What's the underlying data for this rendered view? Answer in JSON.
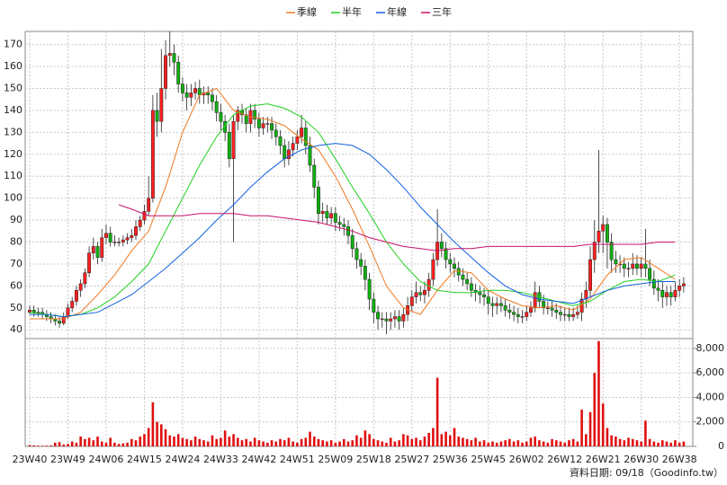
{
  "chart_data": {
    "type": "candlestick",
    "grid": true,
    "legend": "top",
    "up_color": "#ff2020",
    "down_color": "#10b010",
    "source": "資料日期: 09/18（Goodinfo.tw）",
    "categories": [
      "23W40",
      null,
      null,
      null,
      null,
      null,
      null,
      null,
      null,
      "23W49",
      null,
      null,
      null,
      null,
      null,
      null,
      null,
      null,
      "24W06",
      null,
      null,
      null,
      null,
      null,
      null,
      null,
      null,
      "24W15",
      null,
      null,
      null,
      null,
      null,
      null,
      null,
      null,
      "24W24",
      null,
      null,
      null,
      null,
      null,
      null,
      null,
      null,
      "24W33",
      null,
      null,
      null,
      null,
      null,
      null,
      null,
      null,
      "24W42",
      null,
      null,
      null,
      null,
      null,
      null,
      null,
      null,
      "24W51",
      null,
      null,
      null,
      null,
      null,
      null,
      null,
      null,
      "25W09",
      null,
      null,
      null,
      null,
      null,
      null,
      null,
      null,
      "25W18",
      null,
      null,
      null,
      null,
      null,
      null,
      null,
      null,
      "25W27",
      null,
      null,
      null,
      null,
      null,
      null,
      null,
      null,
      "25W36",
      null,
      null,
      null,
      null,
      null,
      null,
      null,
      null,
      "25W45",
      null,
      null,
      null,
      null,
      null,
      null,
      null,
      null,
      "26W02",
      null,
      null,
      null,
      null,
      null,
      null,
      null,
      null,
      "26W12",
      null,
      null,
      null,
      null,
      null,
      null,
      null,
      null,
      "26W21",
      null,
      null,
      null,
      null,
      null,
      null,
      null,
      null,
      "26W30",
      null,
      null,
      null,
      null,
      null,
      null,
      null,
      null,
      "26W38",
      null
    ],
    "open": [
      48,
      49,
      48,
      48,
      47,
      46,
      45,
      44,
      43,
      46,
      50,
      53,
      58,
      61,
      66,
      75,
      78,
      73,
      82,
      84,
      80,
      80,
      80,
      81,
      82,
      83,
      87,
      90,
      94,
      100,
      140,
      135,
      150,
      165,
      166,
      162,
      152,
      148,
      146,
      148,
      150,
      147,
      148,
      147,
      144,
      139,
      135,
      130,
      118,
      135,
      140,
      138,
      134,
      140,
      136,
      132,
      134,
      134,
      131,
      128,
      124,
      118,
      122,
      125,
      128,
      132,
      124,
      115,
      105,
      93,
      94,
      91,
      93,
      89,
      88,
      87,
      83,
      77,
      72,
      69,
      63,
      54,
      48,
      45,
      45,
      44,
      45,
      46,
      44,
      47,
      51,
      55,
      57,
      56,
      58,
      63,
      72,
      80,
      77,
      72,
      70,
      68,
      65,
      63,
      61,
      58,
      57,
      56,
      55,
      52,
      51,
      52,
      51,
      49,
      48,
      47,
      46,
      46,
      48,
      50,
      57,
      53,
      50,
      50,
      49,
      48,
      47,
      47,
      46,
      47,
      48,
      54,
      58,
      72,
      80,
      85,
      88,
      80,
      72,
      70,
      70,
      68,
      68,
      70,
      68,
      70,
      68,
      63,
      59,
      58,
      55,
      57,
      55,
      58,
      60
    ],
    "high": [
      51,
      51,
      50,
      50,
      49,
      48,
      47,
      46,
      48,
      52,
      55,
      60,
      63,
      68,
      78,
      82,
      80,
      86,
      88,
      87,
      83,
      82,
      83,
      84,
      86,
      90,
      92,
      97,
      110,
      147,
      148,
      168,
      172,
      176,
      170,
      165,
      155,
      152,
      152,
      153,
      154,
      151,
      151,
      150,
      147,
      143,
      138,
      134,
      138,
      142,
      143,
      141,
      143,
      143,
      139,
      137,
      137,
      137,
      134,
      131,
      127,
      126,
      128,
      131,
      138,
      135,
      128,
      118,
      108,
      98,
      97,
      96,
      96,
      92,
      91,
      90,
      86,
      80,
      75,
      72,
      66,
      57,
      51,
      48,
      48,
      48,
      49,
      49,
      50,
      55,
      58,
      62,
      60,
      62,
      66,
      75,
      95,
      84,
      80,
      75,
      73,
      71,
      68,
      66,
      64,
      61,
      60,
      59,
      58,
      55,
      55,
      55,
      54,
      52,
      51,
      50,
      49,
      51,
      53,
      62,
      60,
      56,
      53,
      53,
      52,
      51,
      50,
      50,
      50,
      51,
      57,
      62,
      78,
      90,
      122,
      92,
      91,
      84,
      76,
      74,
      73,
      71,
      75,
      74,
      73,
      86,
      72,
      67,
      63,
      62,
      60,
      60,
      62,
      63,
      64
    ],
    "low": [
      47,
      46,
      46,
      45,
      44,
      43,
      42,
      41,
      42,
      45,
      48,
      51,
      55,
      59,
      64,
      72,
      70,
      71,
      79,
      78,
      78,
      78,
      78,
      79,
      80,
      81,
      85,
      88,
      92,
      98,
      128,
      130,
      145,
      160,
      156,
      148,
      144,
      140,
      142,
      145,
      143,
      143,
      143,
      140,
      135,
      131,
      126,
      114,
      80,
      131,
      134,
      130,
      130,
      132,
      128,
      129,
      130,
      127,
      124,
      120,
      114,
      115,
      119,
      122,
      125,
      120,
      112,
      100,
      88,
      89,
      88,
      88,
      85,
      85,
      83,
      79,
      73,
      68,
      65,
      58,
      49,
      43,
      40,
      41,
      38,
      40,
      41,
      40,
      41,
      44,
      48,
      52,
      53,
      52,
      55,
      60,
      69,
      73,
      68,
      66,
      64,
      62,
      60,
      58,
      55,
      53,
      52,
      51,
      47,
      46,
      47,
      48,
      46,
      45,
      44,
      43,
      43,
      44,
      46,
      48,
      50,
      47,
      47,
      46,
      45,
      44,
      44,
      44,
      44,
      45,
      44,
      50,
      55,
      66,
      75,
      75,
      68,
      66,
      66,
      66,
      64,
      64,
      65,
      65,
      64,
      64,
      60,
      56,
      53,
      50,
      51,
      51,
      53,
      55,
      57
    ],
    "close": [
      49,
      48,
      48,
      47,
      46,
      45,
      44,
      43,
      46,
      50,
      53,
      58,
      61,
      66,
      75,
      78,
      73,
      82,
      84,
      80,
      80,
      80,
      81,
      82,
      83,
      87,
      90,
      94,
      100,
      140,
      135,
      150,
      165,
      166,
      162,
      152,
      148,
      146,
      148,
      150,
      147,
      148,
      147,
      144,
      139,
      135,
      130,
      118,
      135,
      140,
      138,
      134,
      140,
      136,
      132,
      134,
      134,
      131,
      128,
      124,
      118,
      122,
      125,
      128,
      132,
      124,
      115,
      105,
      93,
      94,
      91,
      93,
      89,
      88,
      87,
      83,
      77,
      72,
      69,
      63,
      54,
      48,
      45,
      45,
      44,
      45,
      46,
      44,
      47,
      51,
      55,
      57,
      56,
      58,
      63,
      72,
      80,
      77,
      72,
      70,
      68,
      65,
      63,
      61,
      58,
      57,
      56,
      55,
      52,
      51,
      52,
      51,
      49,
      48,
      47,
      46,
      46,
      48,
      50,
      57,
      53,
      50,
      50,
      49,
      48,
      47,
      47,
      46,
      47,
      48,
      54,
      58,
      72,
      80,
      85,
      88,
      80,
      72,
      70,
      70,
      68,
      68,
      70,
      68,
      70,
      68,
      63,
      59,
      58,
      55,
      57,
      55,
      58,
      60,
      61
    ],
    "ylim": [
      36,
      176
    ],
    "yticks": [
      40,
      50,
      60,
      70,
      80,
      90,
      100,
      110,
      120,
      130,
      140,
      150,
      160,
      170
    ],
    "volume": {
      "color": "#e01010",
      "ylim": [
        0,
        8800
      ],
      "yticks": [
        0,
        {
          "value": 2000,
          "label": "2,000"
        },
        {
          "value": 4000,
          "label": "4,000"
        },
        {
          "value": 6000,
          "label": "6,000"
        },
        {
          "value": 8000,
          "label": "8,000"
        }
      ],
      "values": [
        100,
        80,
        60,
        50,
        60,
        80,
        300,
        350,
        150,
        200,
        400,
        300,
        800,
        600,
        700,
        500,
        800,
        400,
        300,
        700,
        300,
        200,
        250,
        300,
        600,
        500,
        800,
        1000,
        1500,
        3600,
        2000,
        1800,
        1400,
        900,
        800,
        1000,
        700,
        600,
        500,
        800,
        600,
        500,
        400,
        900,
        600,
        700,
        1300,
        800,
        1000,
        700,
        500,
        600,
        400,
        700,
        500,
        400,
        300,
        500,
        400,
        600,
        500,
        700,
        400,
        300,
        600,
        700,
        1200,
        800,
        600,
        500,
        400,
        500,
        300,
        400,
        600,
        400,
        500,
        900,
        700,
        1300,
        1000,
        600,
        500,
        400,
        300,
        700,
        400,
        500,
        1000,
        900,
        600,
        700,
        500,
        800,
        1100,
        1500,
        5600,
        1000,
        1200,
        900,
        1500,
        800,
        700,
        600,
        500,
        700,
        400,
        500,
        300,
        400,
        300,
        400,
        500,
        600,
        400,
        500,
        300,
        400,
        700,
        800,
        500,
        400,
        300,
        600,
        500,
        400,
        300,
        500,
        600,
        400,
        3000,
        1000,
        2800,
        6000,
        8600,
        3500,
        1500,
        900,
        800,
        600,
        500,
        700,
        600,
        500,
        400,
        2100,
        600,
        400,
        300,
        500,
        400,
        300,
        500,
        300,
        400
      ]
    },
    "series": [
      {
        "name": "季線",
        "color": "#f07820",
        "x": [
          0,
          4,
          8,
          12,
          16,
          20,
          24,
          28,
          32,
          36,
          40,
          44,
          48,
          52,
          56,
          60,
          64,
          68,
          72,
          76,
          80,
          84,
          88,
          92,
          96,
          100,
          104,
          108,
          112,
          116,
          120,
          124,
          128,
          132,
          136,
          140,
          144,
          148,
          152
        ],
        "values": [
          45,
          45,
          45,
          48,
          56,
          65,
          76,
          85,
          105,
          130,
          147,
          150,
          140,
          137,
          136,
          133,
          127,
          122,
          110,
          95,
          78,
          60,
          50,
          47,
          58,
          67,
          66,
          58,
          54,
          51,
          50,
          51,
          49,
          54,
          65,
          72,
          73,
          68,
          63
        ]
      },
      {
        "name": "半年",
        "color": "#20d020",
        "x": [
          0,
          4,
          8,
          12,
          16,
          20,
          24,
          28,
          32,
          36,
          40,
          44,
          48,
          52,
          56,
          60,
          64,
          68,
          72,
          76,
          80,
          84,
          88,
          92,
          96,
          100,
          104,
          108,
          112,
          116,
          120,
          124,
          128,
          132,
          136,
          140,
          144,
          148,
          152
        ],
        "values": [
          48,
          47,
          46,
          47,
          50,
          55,
          62,
          70,
          85,
          100,
          115,
          128,
          138,
          142,
          143,
          141,
          137,
          130,
          118,
          105,
          93,
          80,
          70,
          62,
          58,
          57,
          57,
          58,
          58,
          57,
          55,
          53,
          51,
          53,
          58,
          62,
          63,
          62,
          65
        ]
      },
      {
        "name": "年線",
        "color": "#1060e0",
        "x": [
          0,
          4,
          8,
          12,
          16,
          20,
          24,
          28,
          32,
          36,
          40,
          44,
          48,
          52,
          56,
          60,
          64,
          68,
          72,
          76,
          80,
          84,
          88,
          92,
          96,
          100,
          104,
          108,
          112,
          116,
          120,
          124,
          128,
          132,
          136,
          140,
          144,
          148,
          152
        ],
        "values": [
          47,
          47,
          46,
          47,
          48,
          52,
          56,
          62,
          68,
          75,
          82,
          90,
          97,
          105,
          112,
          118,
          122,
          124,
          125,
          124,
          120,
          113,
          105,
          96,
          88,
          80,
          73,
          66,
          60,
          56,
          54,
          53,
          52,
          55,
          58,
          60,
          61,
          62,
          62
        ]
      },
      {
        "name": "三年",
        "color": "#c8106a",
        "x": [
          21,
          24,
          28,
          32,
          36,
          40,
          44,
          48,
          52,
          56,
          60,
          64,
          68,
          72,
          76,
          80,
          84,
          88,
          92,
          96,
          100,
          104,
          108,
          112,
          116,
          120,
          124,
          128,
          132,
          136,
          140,
          144,
          148,
          152
        ],
        "values": [
          97,
          95,
          92,
          92,
          92,
          93,
          93,
          93,
          92,
          92,
          91,
          90,
          89,
          87,
          85,
          82,
          80,
          78,
          77,
          76,
          77,
          77,
          78,
          78,
          78,
          78,
          78,
          78,
          79,
          79,
          79,
          79,
          80,
          80
        ]
      }
    ]
  }
}
